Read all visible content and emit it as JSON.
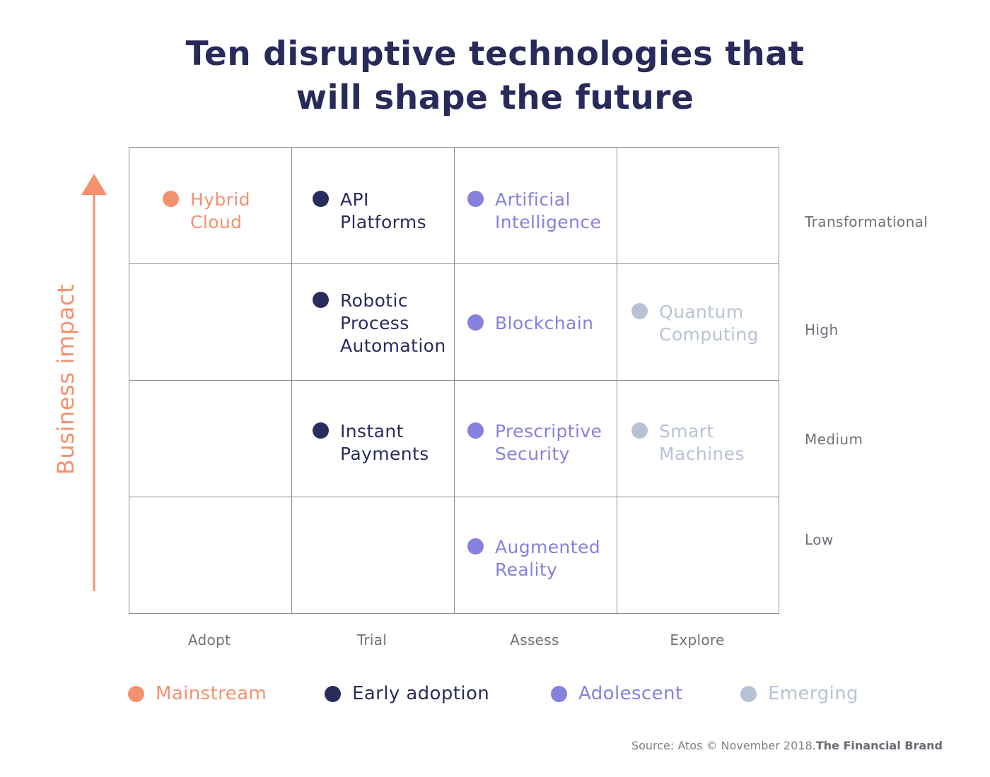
{
  "chart_data": {
    "type": "table",
    "title": [
      "Ten disruptive technologies that",
      "will shape the future"
    ],
    "ylabel": "Business impact",
    "columns": [
      "Adopt",
      "Trial",
      "Assess",
      "Explore"
    ],
    "rows": [
      "Transformational",
      "High",
      "Medium",
      "Low"
    ],
    "categories": [
      {
        "key": "mainstream",
        "name": "Mainstream",
        "color": "#f4916e"
      },
      {
        "key": "early",
        "name": "Early adoption",
        "color": "#2a2c5c"
      },
      {
        "key": "adolescent",
        "name": "Adolescent",
        "color": "#8581dc"
      },
      {
        "key": "emerging",
        "name": "Emerging",
        "color": "#b8c2d4"
      }
    ],
    "items": [
      {
        "label": [
          "Hybrid",
          "Cloud"
        ],
        "column": "Adopt",
        "row": "Transformational",
        "category": "mainstream"
      },
      {
        "label": [
          "API",
          "Platforms"
        ],
        "column": "Trial",
        "row": "Transformational",
        "category": "early"
      },
      {
        "label": [
          "Artificial",
          "Intelligence"
        ],
        "column": "Assess",
        "row": "Transformational",
        "category": "adolescent"
      },
      {
        "label": [
          "Robotic",
          "Process",
          "Automation"
        ],
        "column": "Trial",
        "row": "High",
        "category": "early"
      },
      {
        "label": [
          "Blockchain"
        ],
        "column": "Assess",
        "row": "High",
        "category": "adolescent"
      },
      {
        "label": [
          "Quantum",
          "Computing"
        ],
        "column": "Explore",
        "row": "High",
        "category": "emerging"
      },
      {
        "label": [
          "Instant",
          "Payments"
        ],
        "column": "Trial",
        "row": "Medium",
        "category": "early"
      },
      {
        "label": [
          "Prescriptive",
          "Security"
        ],
        "column": "Assess",
        "row": "Medium",
        "category": "adolescent"
      },
      {
        "label": [
          "Smart",
          "Machines"
        ],
        "column": "Explore",
        "row": "Medium",
        "category": "emerging"
      },
      {
        "label": [
          "Augmented",
          "Reality"
        ],
        "column": "Assess",
        "row": "Low",
        "category": "adolescent"
      }
    ]
  },
  "source": {
    "text": "Source: Atos © November 2018.",
    "brand": "The Financial Brand"
  }
}
